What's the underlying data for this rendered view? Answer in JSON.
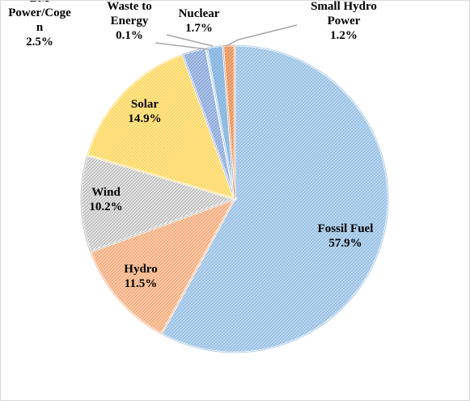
{
  "chart_data": {
    "type": "pie",
    "title": "",
    "start_angle_deg": 0,
    "direction": "clockwise",
    "slices": [
      {
        "name": "Fossil Fuel",
        "value": 57.9,
        "label_name_lines": [
          "Fossil Fuel"
        ],
        "label_value": "57.9%",
        "color": "#bdd7ee",
        "edge": "#5b9bd5",
        "pattern": "hatch"
      },
      {
        "name": "Hydro",
        "value": 11.5,
        "label_name_lines": [
          "Hydro"
        ],
        "label_value": "11.5%",
        "color": "#f8cbad",
        "edge": "#ed7d31",
        "pattern": "hatch"
      },
      {
        "name": "Wind",
        "value": 10.2,
        "label_name_lines": [
          "Wind"
        ],
        "label_value": "10.2%",
        "color": "#e7e6e6",
        "edge": "#7f7f7f",
        "pattern": "hatch"
      },
      {
        "name": "Solar",
        "value": 14.9,
        "label_name_lines": [
          "Solar"
        ],
        "label_value": "14.9%",
        "color": "#ffe699",
        "edge": "#ffc000",
        "pattern": "hatch"
      },
      {
        "name": "BM Power/Cogen",
        "value": 2.5,
        "label_name_lines": [
          "BM",
          "Power/Coge",
          "n"
        ],
        "label_value": "2.5%",
        "color": "#b4c7e7",
        "edge": "#4472c4",
        "pattern": "hatch"
      },
      {
        "name": "Waste to Energy",
        "value": 0.1,
        "label_name_lines": [
          "Waste to",
          "Energy"
        ],
        "label_value": "0.1%",
        "color": "#a9d18e",
        "edge": "#70ad47",
        "pattern": "hatch"
      },
      {
        "name": "Nuclear",
        "value": 1.7,
        "label_name_lines": [
          "Nuclear"
        ],
        "label_value": "1.7%",
        "color": "#9dc3e6",
        "edge": "#5b9bd5",
        "pattern": "hatch"
      },
      {
        "name": "Small Hydro Power",
        "value": 1.2,
        "label_name_lines": [
          "Small Hydro",
          "Power"
        ],
        "label_value": "1.2%",
        "color": "#f4b183",
        "edge": "#c55a11",
        "pattern": "hatch"
      }
    ]
  }
}
